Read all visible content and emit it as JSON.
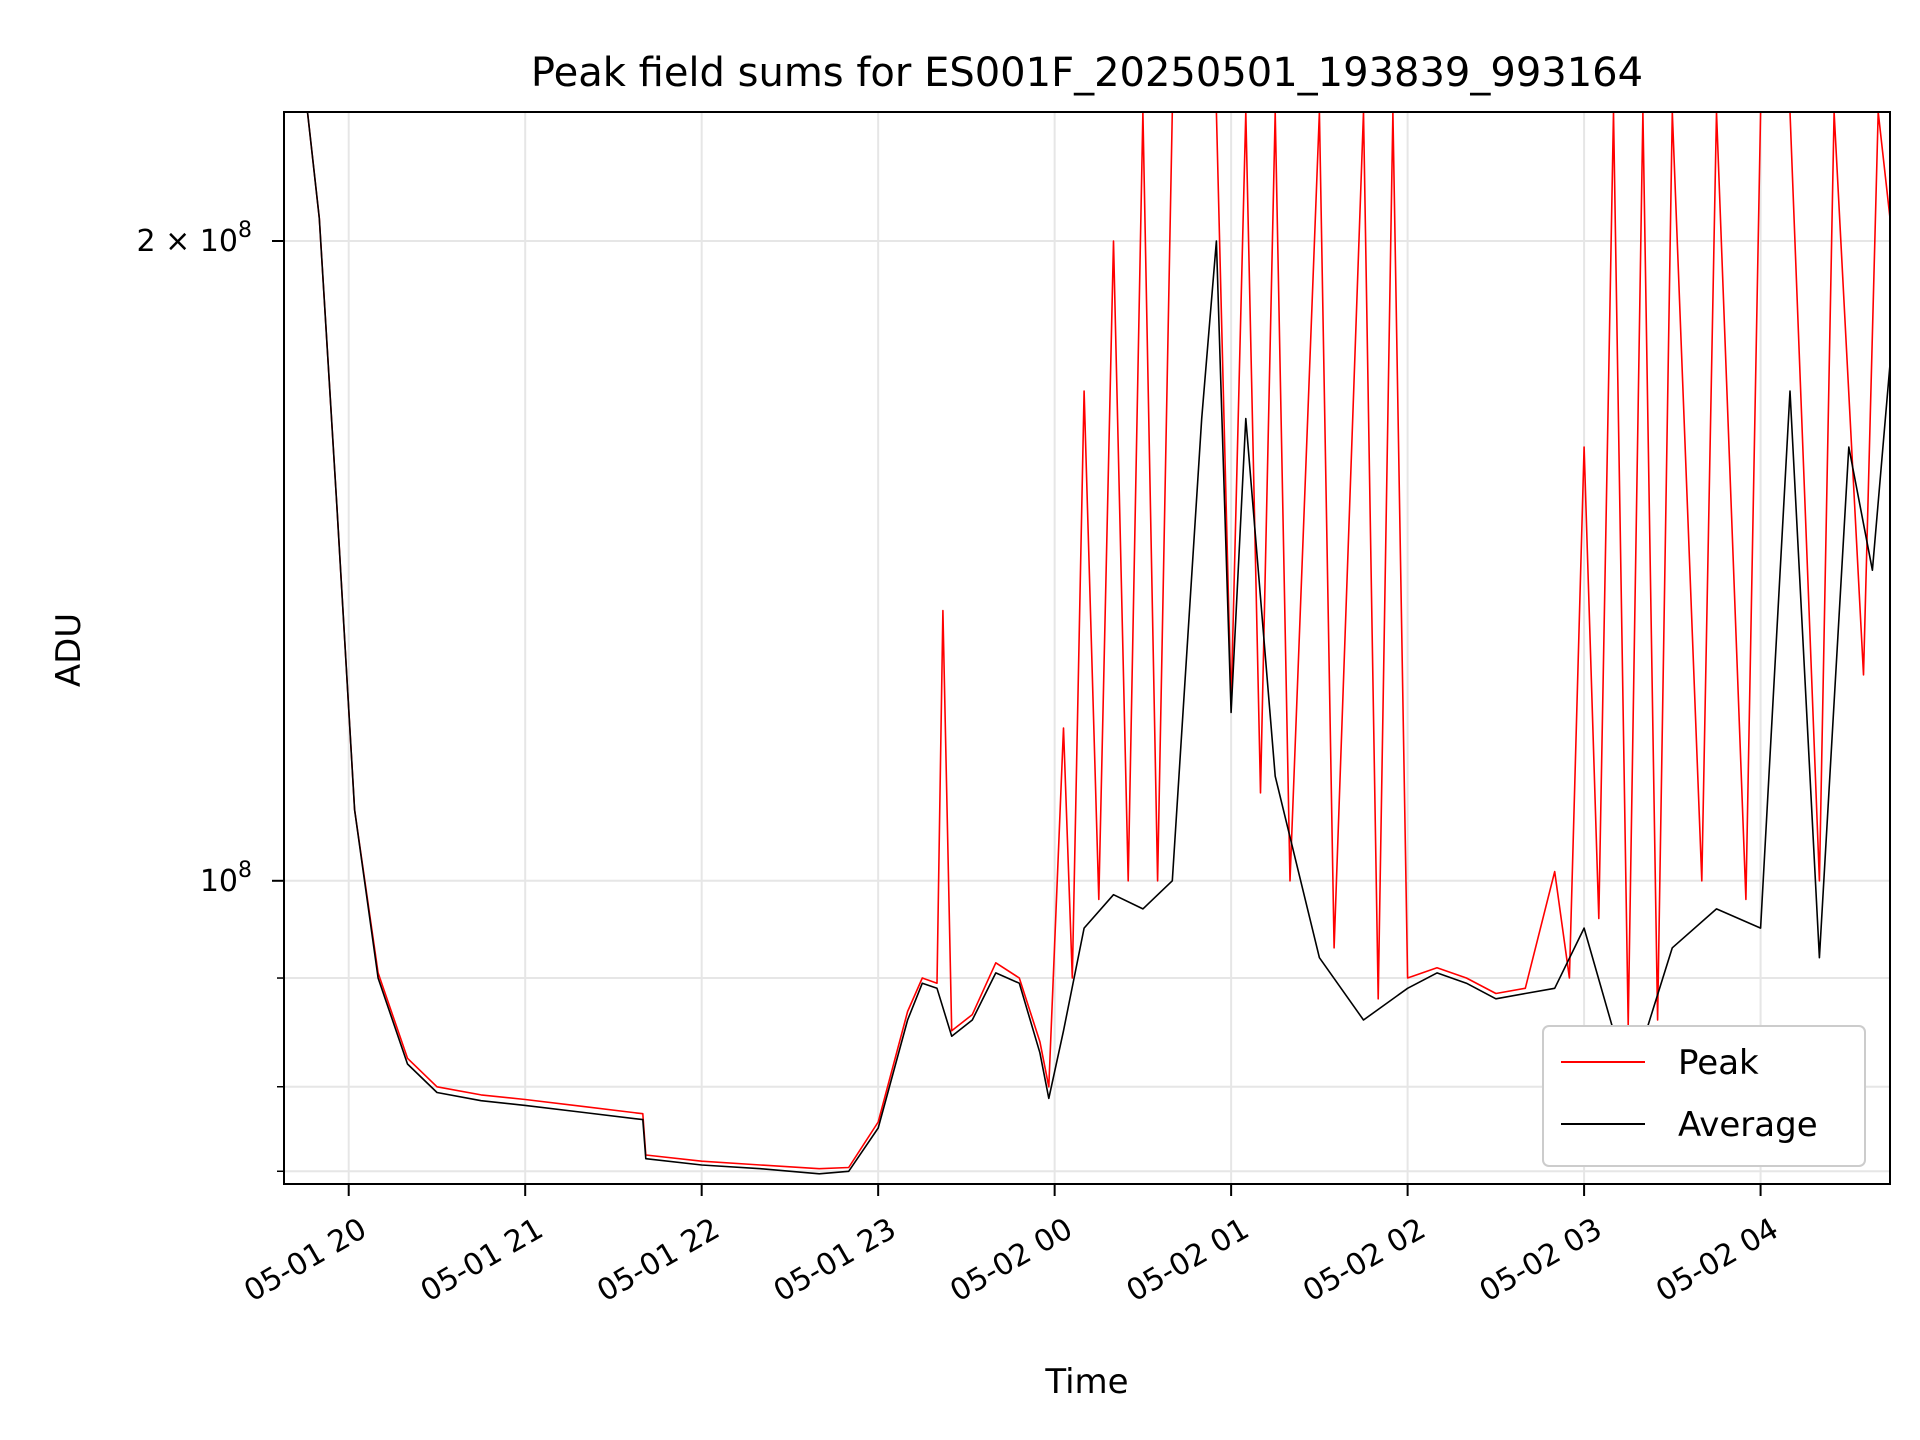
{
  "chart_data": {
    "type": "line",
    "title": "Peak field sums for ES001F_20250501_193839_993164",
    "xlabel": "Time",
    "ylabel": "ADU",
    "yscale": "log",
    "xlim": [
      "2025-05-01 19:38",
      "2025-05-02 04:44"
    ],
    "ylim": [
      72000000,
      230000000
    ],
    "x_ticks": [
      "05-01 20",
      "05-01 21",
      "05-01 22",
      "05-01 23",
      "05-02 00",
      "05-02 01",
      "05-02 02",
      "05-02 03",
      "05-02 04"
    ],
    "y_ticks": [
      {
        "value": 100000000,
        "label": "10",
        "exp": "8"
      },
      {
        "value": 200000000,
        "label": "2 × 10",
        "exp": "8"
      }
    ],
    "y_minor_ticks": [
      73000000,
      80000000,
      90000000
    ],
    "grid": true,
    "legend_position": "lower right",
    "colors": {
      "peak": "#ff0000",
      "average": "#000000"
    },
    "series": [
      {
        "name": "Average",
        "color": "#000000",
        "points": [
          [
            "2025-05-01 19:38",
            230000000
          ],
          [
            "2025-05-01 19:46",
            230000000
          ],
          [
            "2025-05-01 19:50",
            205000000
          ],
          [
            "2025-05-01 19:56",
            150000000
          ],
          [
            "2025-05-01 20:02",
            108000000
          ],
          [
            "2025-05-01 20:10",
            90000000
          ],
          [
            "2025-05-01 20:20",
            82000000
          ],
          [
            "2025-05-01 20:30",
            79500000
          ],
          [
            "2025-05-01 20:45",
            78800000
          ],
          [
            "2025-05-01 21:00",
            78400000
          ],
          [
            "2025-05-01 21:20",
            77800000
          ],
          [
            "2025-05-01 21:40",
            77200000
          ],
          [
            "2025-05-01 21:41",
            74000000
          ],
          [
            "2025-05-01 22:00",
            73500000
          ],
          [
            "2025-05-01 22:20",
            73200000
          ],
          [
            "2025-05-01 22:40",
            72800000
          ],
          [
            "2025-05-01 22:50",
            73000000
          ],
          [
            "2025-05-01 23:00",
            76500000
          ],
          [
            "2025-05-01 23:10",
            86000000
          ],
          [
            "2025-05-01 23:15",
            89500000
          ],
          [
            "2025-05-01 23:20",
            89000000
          ],
          [
            "2025-05-01 23:25",
            84500000
          ],
          [
            "2025-05-01 23:32",
            86000000
          ],
          [
            "2025-05-01 23:40",
            90500000
          ],
          [
            "2025-05-01 23:48",
            89500000
          ],
          [
            "2025-05-01 23:55",
            83000000
          ],
          [
            "2025-05-01 23:58",
            79000000
          ],
          [
            "2025-05-02 00:03",
            85000000
          ],
          [
            "2025-05-02 00:10",
            95000000
          ],
          [
            "2025-05-02 00:20",
            98500000
          ],
          [
            "2025-05-02 00:30",
            97000000
          ],
          [
            "2025-05-02 00:40",
            100000000
          ],
          [
            "2025-05-02 00:50",
            165000000
          ],
          [
            "2025-05-02 00:55",
            200000000
          ],
          [
            "2025-05-02 01:00",
            120000000
          ],
          [
            "2025-05-02 01:05",
            165000000
          ],
          [
            "2025-05-02 01:15",
            112000000
          ],
          [
            "2025-05-02 01:30",
            92000000
          ],
          [
            "2025-05-02 01:45",
            86000000
          ],
          [
            "2025-05-02 02:00",
            89000000
          ],
          [
            "2025-05-02 02:10",
            90500000
          ],
          [
            "2025-05-02 02:20",
            89500000
          ],
          [
            "2025-05-02 02:30",
            88000000
          ],
          [
            "2025-05-02 02:40",
            88500000
          ],
          [
            "2025-05-02 02:50",
            89000000
          ],
          [
            "2025-05-02 03:00",
            95000000
          ],
          [
            "2025-05-02 03:10",
            85000000
          ],
          [
            "2025-05-02 03:20",
            84000000
          ],
          [
            "2025-05-02 03:30",
            93000000
          ],
          [
            "2025-05-02 03:45",
            97000000
          ],
          [
            "2025-05-02 04:00",
            95000000
          ],
          [
            "2025-05-02 04:10",
            170000000
          ],
          [
            "2025-05-02 04:20",
            92000000
          ],
          [
            "2025-05-02 04:30",
            160000000
          ],
          [
            "2025-05-02 04:38",
            140000000
          ],
          [
            "2025-05-02 04:44",
            175000000
          ]
        ]
      },
      {
        "name": "Peak",
        "color": "#ff0000",
        "points": [
          [
            "2025-05-01 19:38",
            230000000
          ],
          [
            "2025-05-01 19:46",
            230000000
          ],
          [
            "2025-05-01 19:50",
            205000000
          ],
          [
            "2025-05-01 19:56",
            150000000
          ],
          [
            "2025-05-01 20:02",
            108000000
          ],
          [
            "2025-05-01 20:10",
            90500000
          ],
          [
            "2025-05-01 20:20",
            82500000
          ],
          [
            "2025-05-01 20:30",
            80000000
          ],
          [
            "2025-05-01 20:45",
            79300000
          ],
          [
            "2025-05-01 21:00",
            78900000
          ],
          [
            "2025-05-01 21:20",
            78300000
          ],
          [
            "2025-05-01 21:40",
            77700000
          ],
          [
            "2025-05-01 21:41",
            74300000
          ],
          [
            "2025-05-01 22:00",
            73800000
          ],
          [
            "2025-05-01 22:20",
            73500000
          ],
          [
            "2025-05-01 22:40",
            73200000
          ],
          [
            "2025-05-01 22:50",
            73300000
          ],
          [
            "2025-05-01 23:00",
            77000000
          ],
          [
            "2025-05-01 23:10",
            86800000
          ],
          [
            "2025-05-01 23:15",
            90000000
          ],
          [
            "2025-05-01 23:20",
            89500000
          ],
          [
            "2025-05-01 23:22",
            134000000
          ],
          [
            "2025-05-01 23:25",
            85000000
          ],
          [
            "2025-05-01 23:32",
            86500000
          ],
          [
            "2025-05-01 23:40",
            91500000
          ],
          [
            "2025-05-01 23:48",
            90000000
          ],
          [
            "2025-05-01 23:55",
            84000000
          ],
          [
            "2025-05-01 23:58",
            80000000
          ],
          [
            "2025-05-02 00:03",
            118000000
          ],
          [
            "2025-05-02 00:06",
            90000000
          ],
          [
            "2025-05-02 00:10",
            170000000
          ],
          [
            "2025-05-02 00:15",
            98000000
          ],
          [
            "2025-05-02 00:20",
            200000000
          ],
          [
            "2025-05-02 00:25",
            100000000
          ],
          [
            "2025-05-02 00:30",
            230000000
          ],
          [
            "2025-05-02 00:35",
            100000000
          ],
          [
            "2025-05-02 00:40",
            230000000
          ],
          [
            "2025-05-02 00:50",
            230000000
          ],
          [
            "2025-05-02 00:55",
            230000000
          ],
          [
            "2025-05-02 01:00",
            121000000
          ],
          [
            "2025-05-02 01:05",
            230000000
          ],
          [
            "2025-05-02 01:10",
            110000000
          ],
          [
            "2025-05-02 01:15",
            230000000
          ],
          [
            "2025-05-02 01:20",
            100000000
          ],
          [
            "2025-05-02 01:30",
            230000000
          ],
          [
            "2025-05-02 01:35",
            93000000
          ],
          [
            "2025-05-02 01:45",
            230000000
          ],
          [
            "2025-05-02 01:50",
            88000000
          ],
          [
            "2025-05-02 01:55",
            230000000
          ],
          [
            "2025-05-02 02:00",
            90000000
          ],
          [
            "2025-05-02 02:10",
            91000000
          ],
          [
            "2025-05-02 02:20",
            90000000
          ],
          [
            "2025-05-02 02:30",
            88500000
          ],
          [
            "2025-05-02 02:40",
            89000000
          ],
          [
            "2025-05-02 02:50",
            101000000
          ],
          [
            "2025-05-02 02:55",
            90000000
          ],
          [
            "2025-05-02 03:00",
            160000000
          ],
          [
            "2025-05-02 03:05",
            96000000
          ],
          [
            "2025-05-02 03:10",
            230000000
          ],
          [
            "2025-05-02 03:15",
            85500000
          ],
          [
            "2025-05-02 03:20",
            230000000
          ],
          [
            "2025-05-02 03:25",
            86000000
          ],
          [
            "2025-05-02 03:30",
            230000000
          ],
          [
            "2025-05-02 03:40",
            100000000
          ],
          [
            "2025-05-02 03:45",
            230000000
          ],
          [
            "2025-05-02 03:55",
            98000000
          ],
          [
            "2025-05-02 04:00",
            230000000
          ],
          [
            "2025-05-02 04:10",
            230000000
          ],
          [
            "2025-05-02 04:20",
            100000000
          ],
          [
            "2025-05-02 04:25",
            230000000
          ],
          [
            "2025-05-02 04:35",
            125000000
          ],
          [
            "2025-05-02 04:40",
            230000000
          ],
          [
            "2025-05-02 04:44",
            205000000
          ]
        ]
      }
    ]
  }
}
